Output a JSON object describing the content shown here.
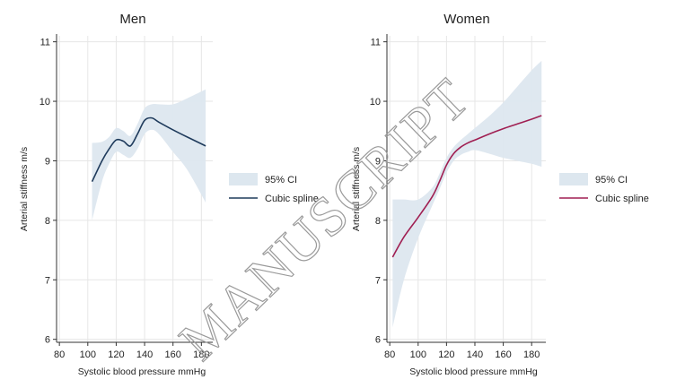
{
  "chart_data": [
    {
      "type": "line",
      "title": "Men",
      "xlabel": "Systolic blood pressure mmHg",
      "ylabel": "Arterial stiffness m/s",
      "xlim": [
        78,
        188
      ],
      "ylim": [
        5.95,
        11.1
      ],
      "xticks": [
        "80",
        "100",
        "120",
        "140",
        "160",
        "180"
      ],
      "yticks": [
        "6",
        "7",
        "8",
        "9",
        "10",
        "11"
      ],
      "grid": true,
      "legend_position": "right",
      "legend": [
        {
          "label": "95% CI",
          "kind": "band",
          "color": "#dde7ef"
        },
        {
          "label": "Cubic spline",
          "kind": "line",
          "color": "#1f3b5c"
        }
      ],
      "series": [
        {
          "name": "Cubic spline",
          "color": "#1f3b5c",
          "x": [
            103,
            110,
            115,
            120,
            125,
            130,
            135,
            140,
            145,
            150,
            160,
            170,
            183
          ],
          "y": [
            8.65,
            9.0,
            9.2,
            9.35,
            9.33,
            9.25,
            9.45,
            9.68,
            9.72,
            9.65,
            9.52,
            9.4,
            9.25
          ],
          "ci_lower": [
            8.0,
            8.65,
            8.95,
            9.15,
            9.1,
            9.05,
            9.2,
            9.45,
            9.52,
            9.45,
            9.15,
            8.85,
            8.3
          ],
          "ci_upper": [
            9.3,
            9.32,
            9.4,
            9.55,
            9.5,
            9.42,
            9.62,
            9.88,
            9.95,
            9.95,
            9.95,
            10.05,
            10.2
          ]
        }
      ]
    },
    {
      "type": "line",
      "title": "Women",
      "xlabel": "Systolic blood pressure mmHg",
      "ylabel": "Arterial stiffness m/s",
      "xlim": [
        78,
        190
      ],
      "ylim": [
        5.95,
        11.1
      ],
      "xticks": [
        "80",
        "100",
        "120",
        "140",
        "160",
        "180"
      ],
      "yticks": [
        "6",
        "7",
        "8",
        "9",
        "10",
        "11"
      ],
      "grid": true,
      "legend_position": "right",
      "legend": [
        {
          "label": "95% CI",
          "kind": "band",
          "color": "#dde7ef"
        },
        {
          "label": "Cubic spline",
          "kind": "line",
          "color": "#a01f52"
        }
      ],
      "series": [
        {
          "name": "Cubic spline",
          "color": "#a01f52",
          "x": [
            82,
            90,
            100,
            110,
            115,
            120,
            125,
            130,
            135,
            140,
            150,
            160,
            170,
            180,
            187
          ],
          "y": [
            7.38,
            7.72,
            8.05,
            8.4,
            8.65,
            8.93,
            9.12,
            9.23,
            9.3,
            9.35,
            9.45,
            9.54,
            9.62,
            9.7,
            9.76
          ],
          "ci_lower": [
            6.2,
            7.0,
            7.7,
            8.25,
            8.52,
            8.8,
            9.0,
            9.1,
            9.15,
            9.18,
            9.12,
            9.05,
            9.0,
            8.95,
            8.9
          ],
          "ci_upper": [
            8.35,
            8.35,
            8.35,
            8.55,
            8.78,
            9.05,
            9.23,
            9.35,
            9.45,
            9.55,
            9.75,
            9.98,
            10.25,
            10.52,
            10.68
          ]
        }
      ]
    }
  ],
  "watermark_text": "MANUSCRIPT",
  "colors": {
    "grid": "#e6e6e6",
    "ci_band": "#dde7ef",
    "axis": "#333333"
  }
}
